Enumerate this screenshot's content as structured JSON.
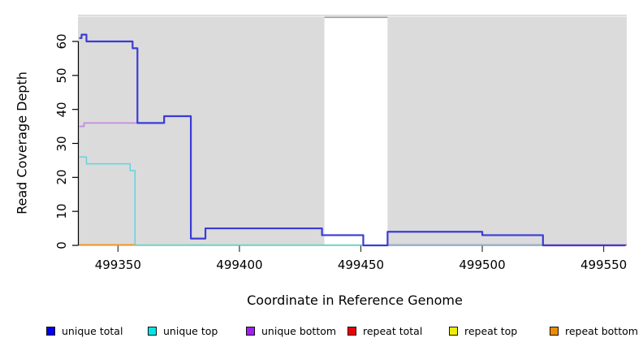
{
  "chart_data": {
    "type": "line",
    "step_style": "step-after",
    "title": "",
    "xlabel": "Coordinate in Reference Genome",
    "ylabel": "Read Coverage Depth",
    "xlim": [
      499333.5,
      499559.5
    ],
    "ylim": [
      0,
      67
    ],
    "grid": "off",
    "legend_position": "bottom",
    "x_ticks": [
      {
        "value": 499350,
        "label": "499350"
      },
      {
        "value": 499400,
        "label": "499400"
      },
      {
        "value": 499450,
        "label": "499450"
      },
      {
        "value": 499500,
        "label": "499500"
      },
      {
        "value": 499550,
        "label": "499550"
      }
    ],
    "y_ticks": [
      {
        "value": 0,
        "label": "0"
      },
      {
        "value": 10,
        "label": "10"
      },
      {
        "value": 20,
        "label": "20"
      },
      {
        "value": 30,
        "label": "30"
      },
      {
        "value": 40,
        "label": "40"
      },
      {
        "value": 50,
        "label": "50"
      },
      {
        "value": 60,
        "label": "60"
      }
    ],
    "background_regions": [
      {
        "from": 499333.5,
        "to": 499435,
        "color": "#DBDBDB"
      },
      {
        "from": 499461,
        "to": 499559.5,
        "color": "#DBDBDB"
      }
    ],
    "top_border_color": "#C9C9C9",
    "gap_top_line_color": "#9A9A9A",
    "zero_line_segments": [
      {
        "from": 499333.5,
        "to": 499357,
        "color": "#F5921E",
        "width": 2
      },
      {
        "from": 499357,
        "to": 499451,
        "color": "#8FCE8F",
        "width": 1.5
      },
      {
        "from": 499461,
        "to": 499559.5,
        "color": "#D14B60",
        "width": 1.5
      }
    ],
    "series": [
      {
        "name": "unique total",
        "legend_color": "#0000EE",
        "line_color": "#3B3BD8",
        "width": 2.2,
        "drawn": true,
        "points": [
          [
            499334,
            61
          ],
          [
            499335,
            62
          ],
          [
            499337,
            60
          ],
          [
            499356,
            58
          ],
          [
            499358,
            36
          ],
          [
            499369,
            38
          ],
          [
            499380,
            2
          ],
          [
            499386,
            5
          ],
          [
            499434,
            3
          ],
          [
            499451,
            0
          ],
          [
            499461,
            4
          ],
          [
            499500,
            3
          ],
          [
            499525,
            0
          ],
          [
            499559,
            0
          ]
        ]
      },
      {
        "name": "unique top",
        "legend_color": "#00E6E6",
        "line_color": "#63D2E2",
        "width": 1.5,
        "drawn": true,
        "points": [
          [
            499334,
            26
          ],
          [
            499337,
            24
          ],
          [
            499355,
            22
          ],
          [
            499357,
            0
          ],
          [
            499559,
            0
          ]
        ]
      },
      {
        "name": "unique bottom",
        "legend_color": "#A020F0",
        "line_color": "#C48BE3",
        "width": 1.8,
        "drawn": true,
        "points": [
          [
            499334,
            35
          ],
          [
            499336,
            36
          ],
          [
            499358,
            36
          ],
          [
            499369,
            38
          ],
          [
            499380,
            2
          ],
          [
            499386,
            5
          ],
          [
            499434,
            3
          ],
          [
            499451,
            0
          ],
          [
            499559,
            0
          ]
        ]
      },
      {
        "name": "repeat total",
        "legend_color": "#EE0000",
        "line_color": "#D14B60",
        "width": 1.5,
        "drawn": false,
        "points": [
          [
            499461,
            0
          ],
          [
            499559,
            0
          ]
        ]
      },
      {
        "name": "repeat top",
        "legend_color": "#EEEE00",
        "line_color": "#EEEE00",
        "width": 1.5,
        "drawn": false,
        "points": [
          [
            499334,
            0
          ],
          [
            499559,
            0
          ]
        ]
      },
      {
        "name": "repeat bottom",
        "legend_color": "#EE8C00",
        "line_color": "#F5921E",
        "width": 1.5,
        "drawn": false,
        "points": [
          [
            499334,
            0
          ],
          [
            499357,
            0
          ]
        ]
      }
    ]
  }
}
